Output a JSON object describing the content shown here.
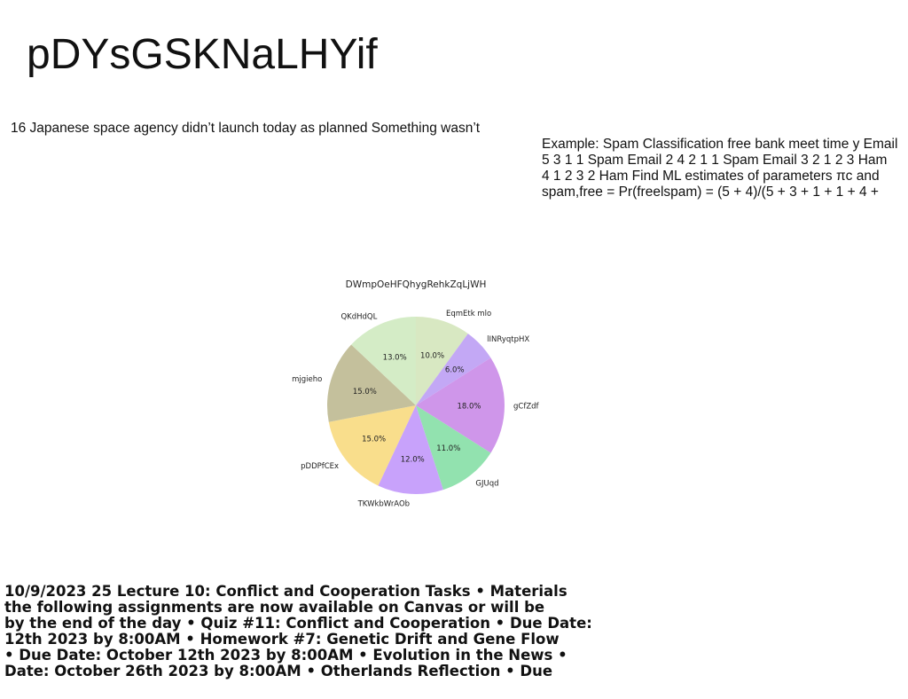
{
  "page": {
    "title": "pDYsGSKNaLHYif",
    "headline": "16 Japanese space agency didn’t launch today as planned Something wasn’t"
  },
  "spam_example": {
    "lines": [
      "Example: Spam Classification free bank meet time y Email",
      "5 3 1 1 Spam Email 2 4 2 1 1 Spam Email 3 2 1 2 3 Ham",
      "4 1 2 3 2 Ham Find ML estimates of parameters πc and",
      "spam,free = Pr(freelspam) = (5 + 4)/(5 + 3 + 1 + 1 + 4 +"
    ]
  },
  "chart_data": {
    "type": "pie",
    "title": "DWmpOeHFQhygRehkZqLjWH",
    "start_angle_deg": 90,
    "direction": "clockwise",
    "slices": [
      {
        "label": "EqmEtk mlo",
        "value": 10.0,
        "pct_label": "10.0%",
        "color": "#d8e8c2"
      },
      {
        "label": "lINRyqtpHX",
        "value": 6.0,
        "pct_label": "6.0%",
        "color": "#c3a8f5"
      },
      {
        "label": "gCfZdf",
        "value": 18.0,
        "pct_label": "18.0%",
        "color": "#cf96ea"
      },
      {
        "label": "GJUqd",
        "value": 11.0,
        "pct_label": "11.0%",
        "color": "#92e2af"
      },
      {
        "label": "TKWkbWrAOb",
        "value": 12.0,
        "pct_label": "12.0%",
        "color": "#c8a2fb"
      },
      {
        "label": "pDDPfCEx",
        "value": 15.0,
        "pct_label": "15.0%",
        "color": "#f9de8c"
      },
      {
        "label": "mjgieho",
        "value": 15.0,
        "pct_label": "15.0%",
        "color": "#c4c09c"
      },
      {
        "label": "QKdHdQL",
        "value": 13.0,
        "pct_label": "13.0%",
        "color": "#d4ecc6"
      }
    ]
  },
  "lecture": {
    "lines": [
      "10/9/2023 25 Lecture 10: Conflict and Cooperation Tasks • Materials",
      "the following assignments are now available on Canvas or will be",
      "by the end of the day • Quiz #11: Conflict and Cooperation • Due Date:",
      "12th 2023 by 8:00AM • Homework #7: Genetic Drift and Gene Flow",
      "• Due Date: October 12th 2023 by 8:00AM • Evolution in the News •",
      "Date: October 26th 2023 by 8:00AM • Otherlands Reflection • Due"
    ]
  }
}
